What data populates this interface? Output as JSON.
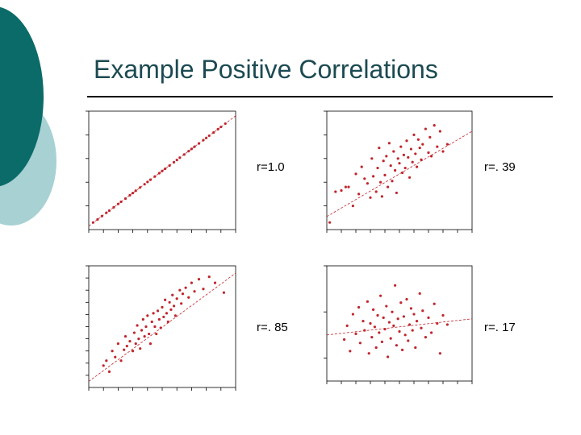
{
  "slide": {
    "title": "Example Positive Correlations",
    "colors": {
      "title": "#1c4a52",
      "rule": "#000000",
      "decor_dark": "#0a6b68",
      "decor_light": "#a7d1d3",
      "points": "#c0262d",
      "axis": "#000000"
    }
  },
  "chart_data": [
    {
      "type": "scatter",
      "label": "r=1.0",
      "r": 1.0,
      "xlim": [
        0,
        10
      ],
      "ylim": [
        0,
        10
      ],
      "x_ticks": [
        0,
        1,
        2,
        3,
        4,
        5,
        6,
        7,
        8,
        9,
        10
      ],
      "y_ticks": [
        2,
        4,
        6,
        8,
        10
      ],
      "grid": false,
      "trendline": [
        [
          0,
          0.3
        ],
        [
          10,
          9.6
        ]
      ],
      "points": [
        [
          0.3,
          0.6
        ],
        [
          0.6,
          0.86
        ],
        [
          0.9,
          1.14
        ],
        [
          1.2,
          1.42
        ],
        [
          1.4,
          1.6
        ],
        [
          1.7,
          1.88
        ],
        [
          2.0,
          2.16
        ],
        [
          2.2,
          2.35
        ],
        [
          2.5,
          2.62
        ],
        [
          2.8,
          2.9
        ],
        [
          3.0,
          3.09
        ],
        [
          3.2,
          3.28
        ],
        [
          3.5,
          3.56
        ],
        [
          3.8,
          3.83
        ],
        [
          4.0,
          4.02
        ],
        [
          4.2,
          4.21
        ],
        [
          4.5,
          4.48
        ],
        [
          4.8,
          4.76
        ],
        [
          5.0,
          4.95
        ],
        [
          5.2,
          5.14
        ],
        [
          5.5,
          5.41
        ],
        [
          5.8,
          5.69
        ],
        [
          6.0,
          5.88
        ],
        [
          6.2,
          6.07
        ],
        [
          6.5,
          6.34
        ],
        [
          6.8,
          6.62
        ],
        [
          7.0,
          6.81
        ],
        [
          7.2,
          7.0
        ],
        [
          7.5,
          7.27
        ],
        [
          7.8,
          7.55
        ],
        [
          8.0,
          7.74
        ],
        [
          8.2,
          7.93
        ],
        [
          8.5,
          8.2
        ],
        [
          8.8,
          8.48
        ],
        [
          9.0,
          8.67
        ],
        [
          9.3,
          8.95
        ]
      ]
    },
    {
      "type": "scatter",
      "label": "r=. 39",
      "r": 0.39,
      "xlim": [
        0,
        10
      ],
      "ylim": [
        0,
        10
      ],
      "x_ticks": [
        0,
        1,
        2,
        3,
        4,
        5,
        6,
        7,
        8,
        9,
        10
      ],
      "y_ticks": [
        2,
        4,
        6,
        8,
        10
      ],
      "grid": false,
      "trendline": [
        [
          0,
          1.1
        ],
        [
          10,
          8.3
        ]
      ],
      "points": [
        [
          0.2,
          0.6
        ],
        [
          0.6,
          3.2
        ],
        [
          1.0,
          3.3
        ],
        [
          1.3,
          3.6
        ],
        [
          1.5,
          3.6
        ],
        [
          1.8,
          2.0
        ],
        [
          2.0,
          4.7
        ],
        [
          2.2,
          3.0
        ],
        [
          2.4,
          5.3
        ],
        [
          2.6,
          4.3
        ],
        [
          2.8,
          3.9
        ],
        [
          3.0,
          2.7
        ],
        [
          3.1,
          6.0
        ],
        [
          3.2,
          4.5
        ],
        [
          3.4,
          3.2
        ],
        [
          3.5,
          5.2
        ],
        [
          3.6,
          6.9
        ],
        [
          3.7,
          4.0
        ],
        [
          3.8,
          2.8
        ],
        [
          3.9,
          5.8
        ],
        [
          4.0,
          4.6
        ],
        [
          4.1,
          6.2
        ],
        [
          4.2,
          3.6
        ],
        [
          4.3,
          7.3
        ],
        [
          4.4,
          5.4
        ],
        [
          4.5,
          4.1
        ],
        [
          4.6,
          6.6
        ],
        [
          4.7,
          5.0
        ],
        [
          4.8,
          3.1
        ],
        [
          4.9,
          6.0
        ],
        [
          5.0,
          5.6
        ],
        [
          5.1,
          7.0
        ],
        [
          5.2,
          4.8
        ],
        [
          5.3,
          6.3
        ],
        [
          5.4,
          5.2
        ],
        [
          5.5,
          7.5
        ],
        [
          5.6,
          6.1
        ],
        [
          5.7,
          4.4
        ],
        [
          5.8,
          6.8
        ],
        [
          5.9,
          5.7
        ],
        [
          6.0,
          8.0
        ],
        [
          6.1,
          6.4
        ],
        [
          6.2,
          5.3
        ],
        [
          6.3,
          7.6
        ],
        [
          6.4,
          6.9
        ],
        [
          6.5,
          5.9
        ],
        [
          6.6,
          7.2
        ],
        [
          6.8,
          8.5
        ],
        [
          7.0,
          6.5
        ],
        [
          7.1,
          7.8
        ],
        [
          7.2,
          6.2
        ],
        [
          7.4,
          8.8
        ],
        [
          7.6,
          7.0
        ],
        [
          7.8,
          8.3
        ],
        [
          8.0,
          6.6
        ],
        [
          8.3,
          7.2
        ]
      ]
    },
    {
      "type": "scatter",
      "label": "r=. 85",
      "r": 0.85,
      "xlim": [
        0,
        10
      ],
      "ylim": [
        0,
        10
      ],
      "x_ticks": [
        0,
        1,
        2,
        3,
        4,
        5,
        6,
        7,
        8,
        9,
        10
      ],
      "y_ticks": [
        1,
        2,
        3,
        4,
        5,
        6,
        7,
        8,
        9,
        10
      ],
      "grid": false,
      "trendline": [
        [
          0,
          0.5
        ],
        [
          10,
          9.4
        ]
      ],
      "points": [
        [
          1.0,
          1.8
        ],
        [
          1.2,
          2.2
        ],
        [
          1.4,
          1.3
        ],
        [
          1.6,
          3.0
        ],
        [
          1.8,
          2.5
        ],
        [
          2.0,
          3.6
        ],
        [
          2.2,
          2.2
        ],
        [
          2.4,
          3.1
        ],
        [
          2.5,
          4.2
        ],
        [
          2.6,
          3.4
        ],
        [
          2.8,
          3.8
        ],
        [
          3.0,
          3.0
        ],
        [
          3.1,
          4.5
        ],
        [
          3.2,
          3.6
        ],
        [
          3.3,
          5.1
        ],
        [
          3.4,
          4.0
        ],
        [
          3.5,
          3.2
        ],
        [
          3.6,
          4.7
        ],
        [
          3.7,
          5.6
        ],
        [
          3.8,
          4.2
        ],
        [
          3.9,
          5.0
        ],
        [
          4.0,
          5.9
        ],
        [
          4.1,
          4.4
        ],
        [
          4.2,
          3.6
        ],
        [
          4.3,
          5.4
        ],
        [
          4.4,
          6.1
        ],
        [
          4.5,
          5.0
        ],
        [
          4.6,
          4.4
        ],
        [
          4.7,
          6.3
        ],
        [
          4.8,
          5.6
        ],
        [
          4.9,
          4.9
        ],
        [
          5.0,
          6.6
        ],
        [
          5.1,
          5.8
        ],
        [
          5.2,
          7.2
        ],
        [
          5.3,
          6.1
        ],
        [
          5.4,
          5.4
        ],
        [
          5.5,
          7.0
        ],
        [
          5.6,
          6.4
        ],
        [
          5.7,
          7.6
        ],
        [
          5.8,
          6.7
        ],
        [
          5.9,
          5.9
        ],
        [
          6.0,
          7.3
        ],
        [
          6.2,
          8.0
        ],
        [
          6.3,
          6.9
        ],
        [
          6.4,
          7.7
        ],
        [
          6.6,
          8.2
        ],
        [
          6.8,
          7.4
        ],
        [
          7.0,
          8.6
        ],
        [
          7.2,
          7.9
        ],
        [
          7.5,
          8.9
        ],
        [
          7.8,
          8.1
        ],
        [
          8.2,
          9.1
        ],
        [
          8.6,
          8.6
        ],
        [
          9.2,
          7.8
        ]
      ]
    },
    {
      "type": "scatter",
      "label": "r=. 17",
      "r": 0.17,
      "xlim": [
        0,
        10
      ],
      "ylim": [
        0,
        10
      ],
      "x_ticks": [
        0,
        1,
        2,
        3,
        4,
        5,
        6,
        7,
        8,
        9,
        10
      ],
      "y_ticks": [
        2,
        6,
        10
      ],
      "grid": false,
      "trendline": [
        [
          0,
          4.0
        ],
        [
          10,
          5.4
        ]
      ],
      "points": [
        [
          1.2,
          3.6
        ],
        [
          1.4,
          4.8
        ],
        [
          1.6,
          2.6
        ],
        [
          1.8,
          5.8
        ],
        [
          2.0,
          4.1
        ],
        [
          2.2,
          6.4
        ],
        [
          2.3,
          3.3
        ],
        [
          2.5,
          5.2
        ],
        [
          2.6,
          4.4
        ],
        [
          2.8,
          6.9
        ],
        [
          2.9,
          2.4
        ],
        [
          3.0,
          5.0
        ],
        [
          3.1,
          3.8
        ],
        [
          3.2,
          6.2
        ],
        [
          3.3,
          4.7
        ],
        [
          3.4,
          2.9
        ],
        [
          3.5,
          5.7
        ],
        [
          3.6,
          4.2
        ],
        [
          3.7,
          7.4
        ],
        [
          3.8,
          3.4
        ],
        [
          3.9,
          5.5
        ],
        [
          4.0,
          4.5
        ],
        [
          4.1,
          6.5
        ],
        [
          4.2,
          2.1
        ],
        [
          4.3,
          5.1
        ],
        [
          4.4,
          3.7
        ],
        [
          4.5,
          6.0
        ],
        [
          4.6,
          4.8
        ],
        [
          4.7,
          8.3
        ],
        [
          4.8,
          3.1
        ],
        [
          4.9,
          5.4
        ],
        [
          5.0,
          4.3
        ],
        [
          5.1,
          6.8
        ],
        [
          5.2,
          2.7
        ],
        [
          5.3,
          5.6
        ],
        [
          5.4,
          4.0
        ],
        [
          5.5,
          7.1
        ],
        [
          5.6,
          3.5
        ],
        [
          5.7,
          4.9
        ],
        [
          5.8,
          6.3
        ],
        [
          5.9,
          4.4
        ],
        [
          6.0,
          5.8
        ],
        [
          6.1,
          2.9
        ],
        [
          6.2,
          5.2
        ],
        [
          6.4,
          7.6
        ],
        [
          6.5,
          4.6
        ],
        [
          6.6,
          6.1
        ],
        [
          6.8,
          3.8
        ],
        [
          7.0,
          5.5
        ],
        [
          7.2,
          4.2
        ],
        [
          7.4,
          6.7
        ],
        [
          7.6,
          5.0
        ],
        [
          7.8,
          2.4
        ],
        [
          8.0,
          5.7
        ],
        [
          8.3,
          4.9
        ]
      ]
    }
  ]
}
